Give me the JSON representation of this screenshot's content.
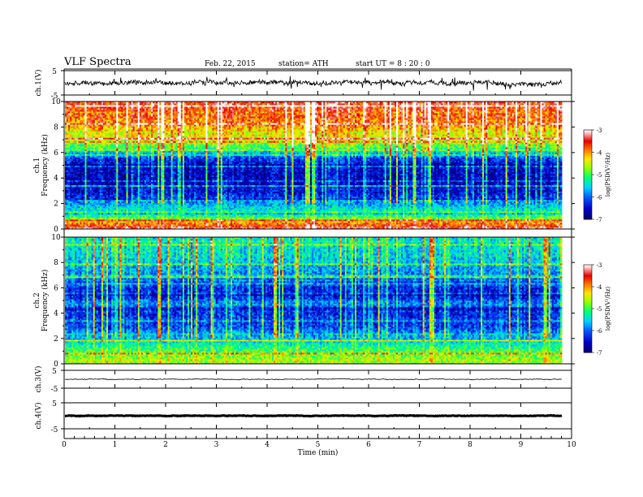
{
  "header": {
    "title": "VLF  Spectra",
    "date": "Feb. 22, 2015",
    "station": "station= ATH",
    "start": "start  UT =   8 : 20 : 0"
  },
  "chart_data": [
    {
      "type": "line",
      "panel": "ch1-waveform",
      "ylabel": "ch.1(V)",
      "yticks": [
        "5",
        "-5"
      ],
      "ylim": [
        -5,
        5
      ],
      "baseline": 0,
      "x": [
        0,
        9.8
      ],
      "description_color": "#000000"
    },
    {
      "type": "heatmap",
      "panel": "ch1-spectrogram",
      "ylabel": "ch.1\nFrequency  (kHz)",
      "ylabel_ch": "ch.1",
      "ylabel_freq": "Frequency  (kHz)",
      "yticks": [
        "0",
        "2",
        "4",
        "6",
        "8",
        "10"
      ],
      "ylim": [
        0,
        10
      ],
      "xlim": [
        0,
        9.8
      ],
      "colorbar": {
        "label": "log(PSD(V²/Hz)",
        "ticks": [
          "-3",
          "-4",
          "-5",
          "-6",
          "-7"
        ],
        "range": [
          -7,
          -3
        ]
      },
      "profile": [
        {
          "f": 0.0,
          "v": -3.3
        },
        {
          "f": 0.5,
          "v": -4.0
        },
        {
          "f": 1.0,
          "v": -5.2
        },
        {
          "f": 1.5,
          "v": -5.4
        },
        {
          "f": 2.0,
          "v": -5.8
        },
        {
          "f": 2.5,
          "v": -6.3
        },
        {
          "f": 3.0,
          "v": -6.6
        },
        {
          "f": 4.0,
          "v": -6.7
        },
        {
          "f": 5.0,
          "v": -6.6
        },
        {
          "f": 5.7,
          "v": -6.2
        },
        {
          "f": 6.3,
          "v": -5.2
        },
        {
          "f": 7.0,
          "v": -4.6
        },
        {
          "f": 8.0,
          "v": -4.2
        },
        {
          "f": 9.0,
          "v": -3.8
        },
        {
          "f": 10.0,
          "v": -3.6
        }
      ]
    },
    {
      "type": "heatmap",
      "panel": "ch2-spectrogram",
      "ylabel": "ch.2\nFrequency  (kHz)",
      "ylabel_ch": "ch.2",
      "ylabel_freq": "Frequency  (kHz)",
      "yticks": [
        "0",
        "2",
        "4",
        "6",
        "8",
        "10"
      ],
      "ylim": [
        0,
        10
      ],
      "xlim": [
        0,
        9.8
      ],
      "colorbar": {
        "label": "log(PSD(V²/Hz)",
        "ticks": [
          "-3",
          "-4",
          "-5",
          "-6",
          "-7"
        ],
        "range": [
          -7,
          -3
        ]
      },
      "profile": [
        {
          "f": 0.0,
          "v": -4.5
        },
        {
          "f": 0.5,
          "v": -4.8
        },
        {
          "f": 1.0,
          "v": -5.0
        },
        {
          "f": 1.5,
          "v": -5.3
        },
        {
          "f": 2.0,
          "v": -5.7
        },
        {
          "f": 2.5,
          "v": -6.0
        },
        {
          "f": 3.0,
          "v": -6.3
        },
        {
          "f": 4.0,
          "v": -6.4
        },
        {
          "f": 4.7,
          "v": -6.0
        },
        {
          "f": 5.5,
          "v": -6.5
        },
        {
          "f": 6.5,
          "v": -6.3
        },
        {
          "f": 7.5,
          "v": -5.8
        },
        {
          "f": 8.5,
          "v": -5.6
        },
        {
          "f": 10.0,
          "v": -5.5
        }
      ]
    },
    {
      "type": "line",
      "panel": "ch3-waveform",
      "ylabel": "ch.3(V)",
      "yticks": [
        "5",
        "-5"
      ],
      "ylim": [
        -5,
        5
      ],
      "baseline": 0,
      "x": [
        0,
        9.8
      ]
    },
    {
      "type": "line",
      "panel": "ch4-waveform",
      "ylabel": "ch.4(V)",
      "yticks": [
        "5",
        "-5"
      ],
      "ylim": [
        -5,
        5
      ],
      "baseline": 0,
      "x": [
        0,
        9.8
      ]
    }
  ],
  "xaxis": {
    "label": "Time  (min)",
    "ticks": [
      "0",
      "1",
      "2",
      "3",
      "4",
      "5",
      "6",
      "7",
      "8",
      "9",
      "10"
    ],
    "xlim": [
      0,
      10
    ]
  },
  "colors": {
    "axis": "#000000",
    "trace": "#000000",
    "background": "#ffffff"
  }
}
